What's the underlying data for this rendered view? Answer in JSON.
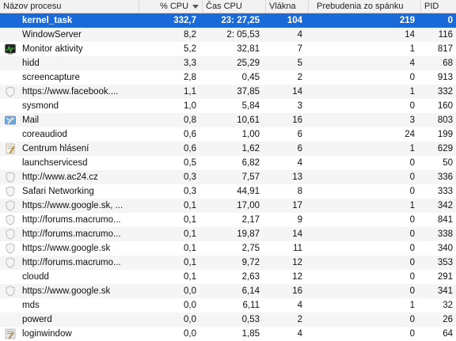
{
  "columns": {
    "name": "Názov procesu",
    "cpu": "% CPU",
    "time": "Čas CPU",
    "threads": "Vlákna",
    "wakeups": "Prebudenia zo spánku",
    "pid": "PID"
  },
  "rows": [
    {
      "name": "kernel_task",
      "cpu": "332,7",
      "time": "23: 27,25",
      "threads": "104",
      "wakeups": "219",
      "pid": "0",
      "icon": "none",
      "selected": true
    },
    {
      "name": "WindowServer",
      "cpu": "8,2",
      "time": "2: 05,53",
      "threads": "4",
      "wakeups": "14",
      "pid": "116",
      "icon": "none"
    },
    {
      "name": "Monitor aktivity",
      "cpu": "5,2",
      "time": "32,81",
      "threads": "7",
      "wakeups": "1",
      "pid": "817",
      "icon": "activity-monitor-icon"
    },
    {
      "name": "hidd",
      "cpu": "3,3",
      "time": "25,29",
      "threads": "5",
      "wakeups": "4",
      "pid": "68",
      "icon": "none"
    },
    {
      "name": "screencapture",
      "cpu": "2,8",
      "time": "0,45",
      "threads": "2",
      "wakeups": "0",
      "pid": "913",
      "icon": "none"
    },
    {
      "name": "https://www.facebook....",
      "cpu": "1,1",
      "time": "37,85",
      "threads": "14",
      "wakeups": "1",
      "pid": "332",
      "icon": "shield-icon"
    },
    {
      "name": "sysmond",
      "cpu": "1,0",
      "time": "5,84",
      "threads": "3",
      "wakeups": "0",
      "pid": "160",
      "icon": "none"
    },
    {
      "name": "Mail",
      "cpu": "0,8",
      "time": "10,61",
      "threads": "16",
      "wakeups": "3",
      "pid": "803",
      "icon": "mail-icon"
    },
    {
      "name": "coreaudiod",
      "cpu": "0,6",
      "time": "1,00",
      "threads": "6",
      "wakeups": "24",
      "pid": "199",
      "icon": "none"
    },
    {
      "name": "Centrum hlásení",
      "cpu": "0,6",
      "time": "1,62",
      "threads": "6",
      "wakeups": "1",
      "pid": "629",
      "icon": "report-icon"
    },
    {
      "name": "launchservicesd",
      "cpu": "0,5",
      "time": "6,82",
      "threads": "4",
      "wakeups": "0",
      "pid": "50",
      "icon": "none"
    },
    {
      "name": "http://www.ac24.cz",
      "cpu": "0,3",
      "time": "7,57",
      "threads": "13",
      "wakeups": "0",
      "pid": "336",
      "icon": "shield-icon"
    },
    {
      "name": "Safari Networking",
      "cpu": "0,3",
      "time": "44,91",
      "threads": "8",
      "wakeups": "0",
      "pid": "333",
      "icon": "shield-icon"
    },
    {
      "name": "https://www.google.sk, ...",
      "cpu": "0,1",
      "time": "17,00",
      "threads": "17",
      "wakeups": "1",
      "pid": "342",
      "icon": "shield-icon"
    },
    {
      "name": "http://forums.macrumo...",
      "cpu": "0,1",
      "time": "2,17",
      "threads": "9",
      "wakeups": "0",
      "pid": "841",
      "icon": "shield-icon"
    },
    {
      "name": "http://forums.macrumo...",
      "cpu": "0,1",
      "time": "19,87",
      "threads": "14",
      "wakeups": "0",
      "pid": "338",
      "icon": "shield-icon"
    },
    {
      "name": "https://www.google.sk",
      "cpu": "0,1",
      "time": "2,75",
      "threads": "11",
      "wakeups": "0",
      "pid": "340",
      "icon": "shield-icon"
    },
    {
      "name": "http://forums.macrumo...",
      "cpu": "0,1",
      "time": "9,72",
      "threads": "12",
      "wakeups": "0",
      "pid": "353",
      "icon": "shield-icon"
    },
    {
      "name": "cloudd",
      "cpu": "0,1",
      "time": "2,63",
      "threads": "12",
      "wakeups": "0",
      "pid": "291",
      "icon": "none"
    },
    {
      "name": "https://www.google.sk",
      "cpu": "0,0",
      "time": "6,14",
      "threads": "16",
      "wakeups": "0",
      "pid": "341",
      "icon": "shield-icon"
    },
    {
      "name": "mds",
      "cpu": "0,0",
      "time": "6,11",
      "threads": "4",
      "wakeups": "1",
      "pid": "32",
      "icon": "none"
    },
    {
      "name": "powerd",
      "cpu": "0,0",
      "time": "0,53",
      "threads": "2",
      "wakeups": "0",
      "pid": "26",
      "icon": "none"
    },
    {
      "name": "loginwindow",
      "cpu": "0,0",
      "time": "1,85",
      "threads": "4",
      "wakeups": "0",
      "pid": "64",
      "icon": "loginwindow-icon"
    }
  ]
}
